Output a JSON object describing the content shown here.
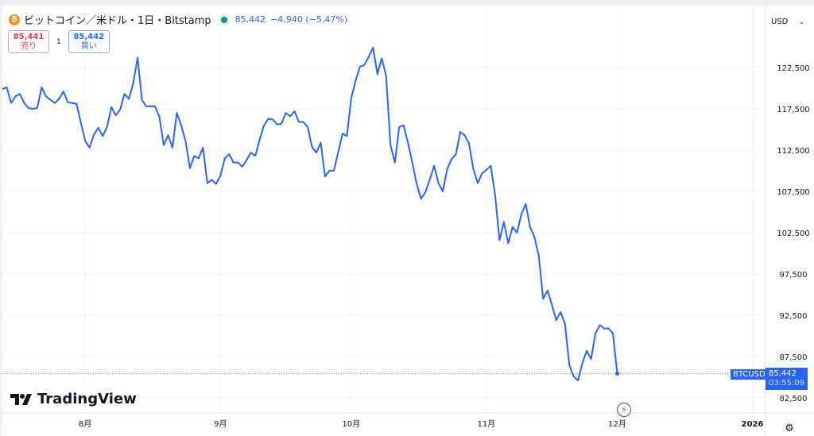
{
  "header": {
    "coin_icon": "bitcoin-icon",
    "title": "ビットコイン／米ドル・1日・Bitstamp",
    "status_icon": "market-open-dot",
    "price": "85,442",
    "change": "−4,940 (−5.47%)"
  },
  "trade": {
    "sell_price": "85,441",
    "sell_label": "売り",
    "spread": "1",
    "buy_price": "85,442",
    "buy_label": "買い"
  },
  "currency": {
    "value": "USD"
  },
  "brand": "TradingView",
  "last_price": {
    "symbol": "BTCUSD",
    "price": "85,442",
    "countdown": "03:55:09"
  },
  "colors": {
    "line": "#2962ff",
    "sell": "#e0414f",
    "buy": "#2962ff",
    "tag": "#2962ff"
  },
  "chart_data": {
    "type": "line",
    "title": "",
    "xlabel": "",
    "ylabel": "",
    "ylim": [
      80500,
      126500
    ],
    "grid": true,
    "y_ticks": [
      82500,
      87500,
      92500,
      97500,
      102500,
      107500,
      112500,
      117500,
      122500
    ],
    "y_tick_labels": [
      "82,500",
      "87,500",
      "92,500",
      "97,500",
      "102,500",
      "107,500",
      "112,500",
      "117,500",
      "122,500"
    ],
    "x_ticks": [
      {
        "date": "2025-08-01",
        "label": "8月"
      },
      {
        "date": "2025-09-01",
        "label": "9月"
      },
      {
        "date": "2025-10-01",
        "label": "10月"
      },
      {
        "date": "2025-11-01",
        "label": "11月"
      },
      {
        "date": "2025-12-01",
        "label": "12月"
      },
      {
        "date": "2026-01-01",
        "label": "2026"
      }
    ],
    "xlim": [
      "2025-07-13",
      "2026-01-04"
    ],
    "values": [
      119900,
      120100,
      118200,
      119000,
      119300,
      118200,
      117600,
      117500,
      117600,
      120100,
      119000,
      118600,
      118200,
      118700,
      119600,
      118300,
      118200,
      118100,
      115800,
      113600,
      112800,
      114400,
      115200,
      114200,
      115300,
      117700,
      116700,
      117400,
      119300,
      118700,
      120600,
      123700,
      118600,
      117800,
      117800,
      117800,
      116500,
      113100,
      114300,
      112800,
      117000,
      115500,
      113600,
      110300,
      111800,
      111500,
      112800,
      108500,
      108900,
      108400,
      109400,
      111500,
      112000,
      111000,
      111000,
      110500,
      111300,
      112200,
      111800,
      113800,
      115500,
      116300,
      116200,
      115600,
      115700,
      117000,
      116600,
      117200,
      115900,
      115900,
      115300,
      112900,
      112200,
      113400,
      109300,
      110000,
      110000,
      112200,
      114500,
      114200,
      118800,
      120900,
      122600,
      122800,
      123800,
      124900,
      121700,
      123600,
      121500,
      113100,
      111000,
      115300,
      115500,
      113400,
      111000,
      108400,
      106600,
      107400,
      108900,
      110600,
      108500,
      107500,
      110200,
      111400,
      112000,
      114700,
      114300,
      113300,
      110200,
      108500,
      109700,
      110100,
      110600,
      107000,
      101600,
      103800,
      101200,
      103200,
      102500,
      104700,
      106000,
      103200,
      102000,
      99700,
      94500,
      95500,
      93800,
      91900,
      92900,
      91500,
      86500,
      85100,
      84600,
      86700,
      88200,
      87200,
      90300,
      91300,
      90900,
      90900,
      90300,
      85442
    ],
    "x_first": "2025-07-13",
    "x_last": "2025-12-01",
    "x_step": "1日"
  },
  "footer": {
    "event_icon": "lightning-icon",
    "settings_icon": "settings-icon"
  }
}
